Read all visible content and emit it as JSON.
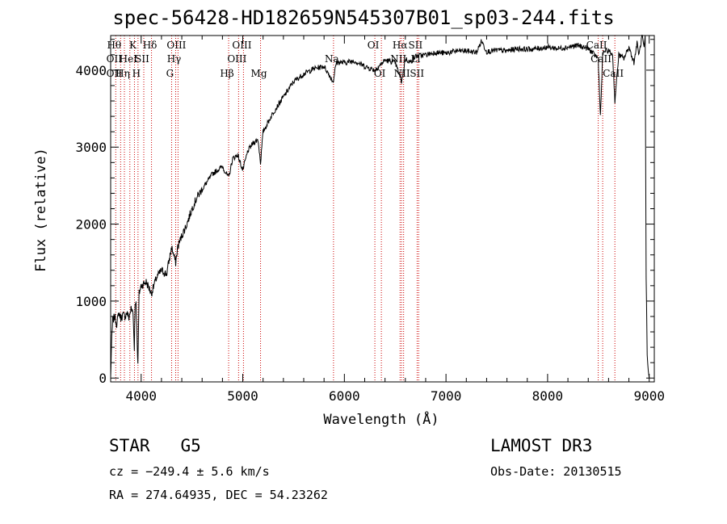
{
  "chart_data": {
    "type": "line",
    "title": "spec-56428-HD182659N545307B01_sp03-244.fits",
    "xlabel": "Wavelength (Å)",
    "ylabel": "Flux (relative)",
    "xlim": [
      3700,
      9050
    ],
    "ylim": [
      -50,
      4450
    ],
    "xticks": [
      4000,
      5000,
      6000,
      7000,
      8000,
      9000
    ],
    "yticks": [
      0,
      1000,
      2000,
      3000,
      4000
    ],
    "series": [
      {
        "name": "spectrum",
        "x": [
          3700,
          3710,
          3720,
          3740,
          3760,
          3780,
          3800,
          3820,
          3840,
          3860,
          3880,
          3900,
          3920,
          3933,
          3940,
          3950,
          3968,
          3980,
          4000,
          4050,
          4101,
          4150,
          4200,
          4250,
          4300,
          4340,
          4360,
          4400,
          4450,
          4500,
          4550,
          4600,
          4650,
          4700,
          4750,
          4800,
          4861,
          4900,
          4950,
          5000,
          5050,
          5100,
          5150,
          5175,
          5200,
          5300,
          5400,
          5500,
          5600,
          5700,
          5800,
          5890,
          5920,
          6000,
          6100,
          6200,
          6300,
          6400,
          6500,
          6563,
          6600,
          6650,
          6700,
          6800,
          6900,
          7000,
          7100,
          7200,
          7300,
          7350,
          7400,
          7500,
          7600,
          7700,
          7800,
          7900,
          8000,
          8100,
          8200,
          8300,
          8400,
          8498,
          8520,
          8542,
          8560,
          8600,
          8640,
          8662,
          8700,
          8750,
          8800,
          8850,
          8880,
          8900,
          8930,
          8950,
          8960,
          8970,
          8980,
          8990,
          9000
        ],
        "y": [
          0,
          500,
          750,
          800,
          700,
          850,
          780,
          820,
          800,
          850,
          780,
          900,
          850,
          400,
          950,
          1000,
          150,
          1100,
          1200,
          1250,
          1100,
          1300,
          1400,
          1350,
          1700,
          1500,
          1700,
          1850,
          2000,
          2200,
          2350,
          2450,
          2550,
          2650,
          2700,
          2750,
          2600,
          2850,
          2900,
          2700,
          2950,
          3050,
          3100,
          2800,
          3200,
          3450,
          3650,
          3850,
          3950,
          4020,
          4050,
          3850,
          4100,
          4100,
          4120,
          4050,
          4000,
          4130,
          4100,
          3850,
          4150,
          4100,
          4180,
          4200,
          4230,
          4220,
          4250,
          4250,
          4230,
          4380,
          4240,
          4260,
          4250,
          4280,
          4270,
          4280,
          4300,
          4280,
          4300,
          4320,
          4280,
          4150,
          3400,
          4200,
          4250,
          4250,
          4200,
          3600,
          4200,
          4150,
          4300,
          4100,
          4350,
          4200,
          4450,
          4300,
          4450,
          1300,
          300,
          100,
          0
        ]
      }
    ],
    "lines": [
      {
        "wl": 3750,
        "labels": [
          "Hθ",
          "OII",
          "OII"
        ]
      },
      {
        "wl": 3798,
        "labels": [
          "",
          "",
          ""
        ]
      },
      {
        "wl": 3835,
        "labels": [
          "",
          "",
          "Hη"
        ]
      },
      {
        "wl": 3889,
        "labels": [
          "",
          "HeI",
          ""
        ]
      },
      {
        "wl": 3934,
        "labels": [
          "K",
          "",
          ""
        ]
      },
      {
        "wl": 3969,
        "labels": [
          "",
          "",
          "H"
        ]
      },
      {
        "wl": 4026,
        "labels": [
          "",
          "SII",
          ""
        ]
      },
      {
        "wl": 4102,
        "labels": [
          "Hδ",
          "",
          ""
        ]
      },
      {
        "wl": 4300,
        "labels": [
          "",
          "",
          "G"
        ]
      },
      {
        "wl": 4340,
        "labels": [
          "",
          "Hγ",
          ""
        ]
      },
      {
        "wl": 4363,
        "labels": [
          "OIII",
          "",
          ""
        ]
      },
      {
        "wl": 4861,
        "labels": [
          "",
          "",
          "Hβ"
        ]
      },
      {
        "wl": 4959,
        "labels": [
          "",
          "OIII",
          ""
        ]
      },
      {
        "wl": 5007,
        "labels": [
          "OIII",
          "",
          ""
        ]
      },
      {
        "wl": 5175,
        "labels": [
          "",
          "",
          "Mg"
        ]
      },
      {
        "wl": 5893,
        "labels": [
          "",
          "Na",
          ""
        ]
      },
      {
        "wl": 6300,
        "labels": [
          "OI",
          "",
          ""
        ]
      },
      {
        "wl": 6364,
        "labels": [
          "",
          "",
          "OI"
        ]
      },
      {
        "wl": 6548,
        "labels": [
          "",
          "NII",
          ""
        ]
      },
      {
        "wl": 6563,
        "labels": [
          "Hα",
          "",
          ""
        ]
      },
      {
        "wl": 6583,
        "labels": [
          "",
          "",
          "NII"
        ]
      },
      {
        "wl": 6716,
        "labels": [
          "SII",
          "Li",
          ""
        ]
      },
      {
        "wl": 6731,
        "labels": [
          "",
          "",
          "SII"
        ]
      },
      {
        "wl": 8498,
        "labels": [
          "CaII",
          "",
          ""
        ]
      },
      {
        "wl": 8542,
        "labels": [
          "",
          "CaII",
          ""
        ]
      },
      {
        "wl": 8662,
        "labels": [
          "",
          "",
          "CaII"
        ]
      }
    ]
  },
  "info": {
    "class": "STAR",
    "subclass": "G5",
    "survey": "LAMOST DR3",
    "cz": "cz = −249.4 ± 5.6 km/s",
    "obsdate": "Obs-Date: 20130515",
    "radec": "RA = 274.64935, DEC =  54.23262"
  },
  "colors": {
    "axis": "#000000",
    "spectrum": "#000000",
    "line_marker": "#cc0000"
  }
}
